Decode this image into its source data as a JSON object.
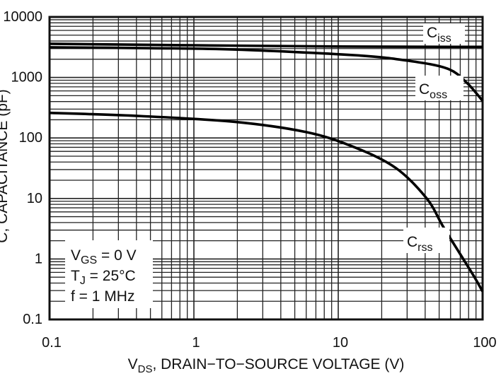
{
  "chart_data": {
    "type": "line",
    "title": "",
    "xlabel": {
      "main": "V",
      "sub": "DS",
      "rest": ", DRAIN−TO−SOURCE VOLTAGE (V)"
    },
    "ylabel": "C, CAPACITANCE (pF)",
    "x_scale": "log",
    "y_scale": "log",
    "xlim": [
      0.1,
      100
    ],
    "ylim": [
      0.1,
      10000
    ],
    "grid": true,
    "x_ticks": [
      {
        "v": 0.1,
        "label": "0.1"
      },
      {
        "v": 1,
        "label": "1"
      },
      {
        "v": 10,
        "label": "10"
      },
      {
        "v": 100,
        "label": "100"
      }
    ],
    "y_ticks": [
      {
        "v": 0.1,
        "label": "0.1"
      },
      {
        "v": 1,
        "label": "1"
      },
      {
        "v": 10,
        "label": "10"
      },
      {
        "v": 100,
        "label": "100"
      },
      {
        "v": 1000,
        "label": "1000"
      },
      {
        "v": 10000,
        "label": "10000"
      }
    ],
    "series": [
      {
        "name": "Ciss",
        "label_main": "C",
        "label_sub": "iss",
        "x": [
          0.1,
          1,
          10,
          100
        ],
        "y": [
          3600,
          3400,
          3250,
          3200
        ]
      },
      {
        "name": "Coss",
        "label_main": "C",
        "label_sub": "oss",
        "x": [
          0.1,
          0.5,
          1.9,
          12.8,
          30,
          57,
          78,
          100
        ],
        "y": [
          3150,
          3050,
          2900,
          2340,
          1900,
          1400,
          810,
          410
        ]
      },
      {
        "name": "Crss",
        "label_main": "C",
        "label_sub": "rss",
        "x": [
          0.1,
          0.43,
          1.9,
          6,
          12.8,
          25,
          41,
          53,
          70,
          87,
          100
        ],
        "y": [
          260,
          230,
          185,
          125,
          71,
          32,
          10,
          3.5,
          1.2,
          0.52,
          0.29
        ]
      }
    ],
    "conditions": [
      {
        "main": "V",
        "sub": "GS",
        "rest": " = 0 V"
      },
      {
        "main": "T",
        "sub": "J",
        "rest": " = 25°C"
      },
      {
        "main": "f",
        "sub": "",
        "rest": " = 1 MHz"
      }
    ]
  }
}
